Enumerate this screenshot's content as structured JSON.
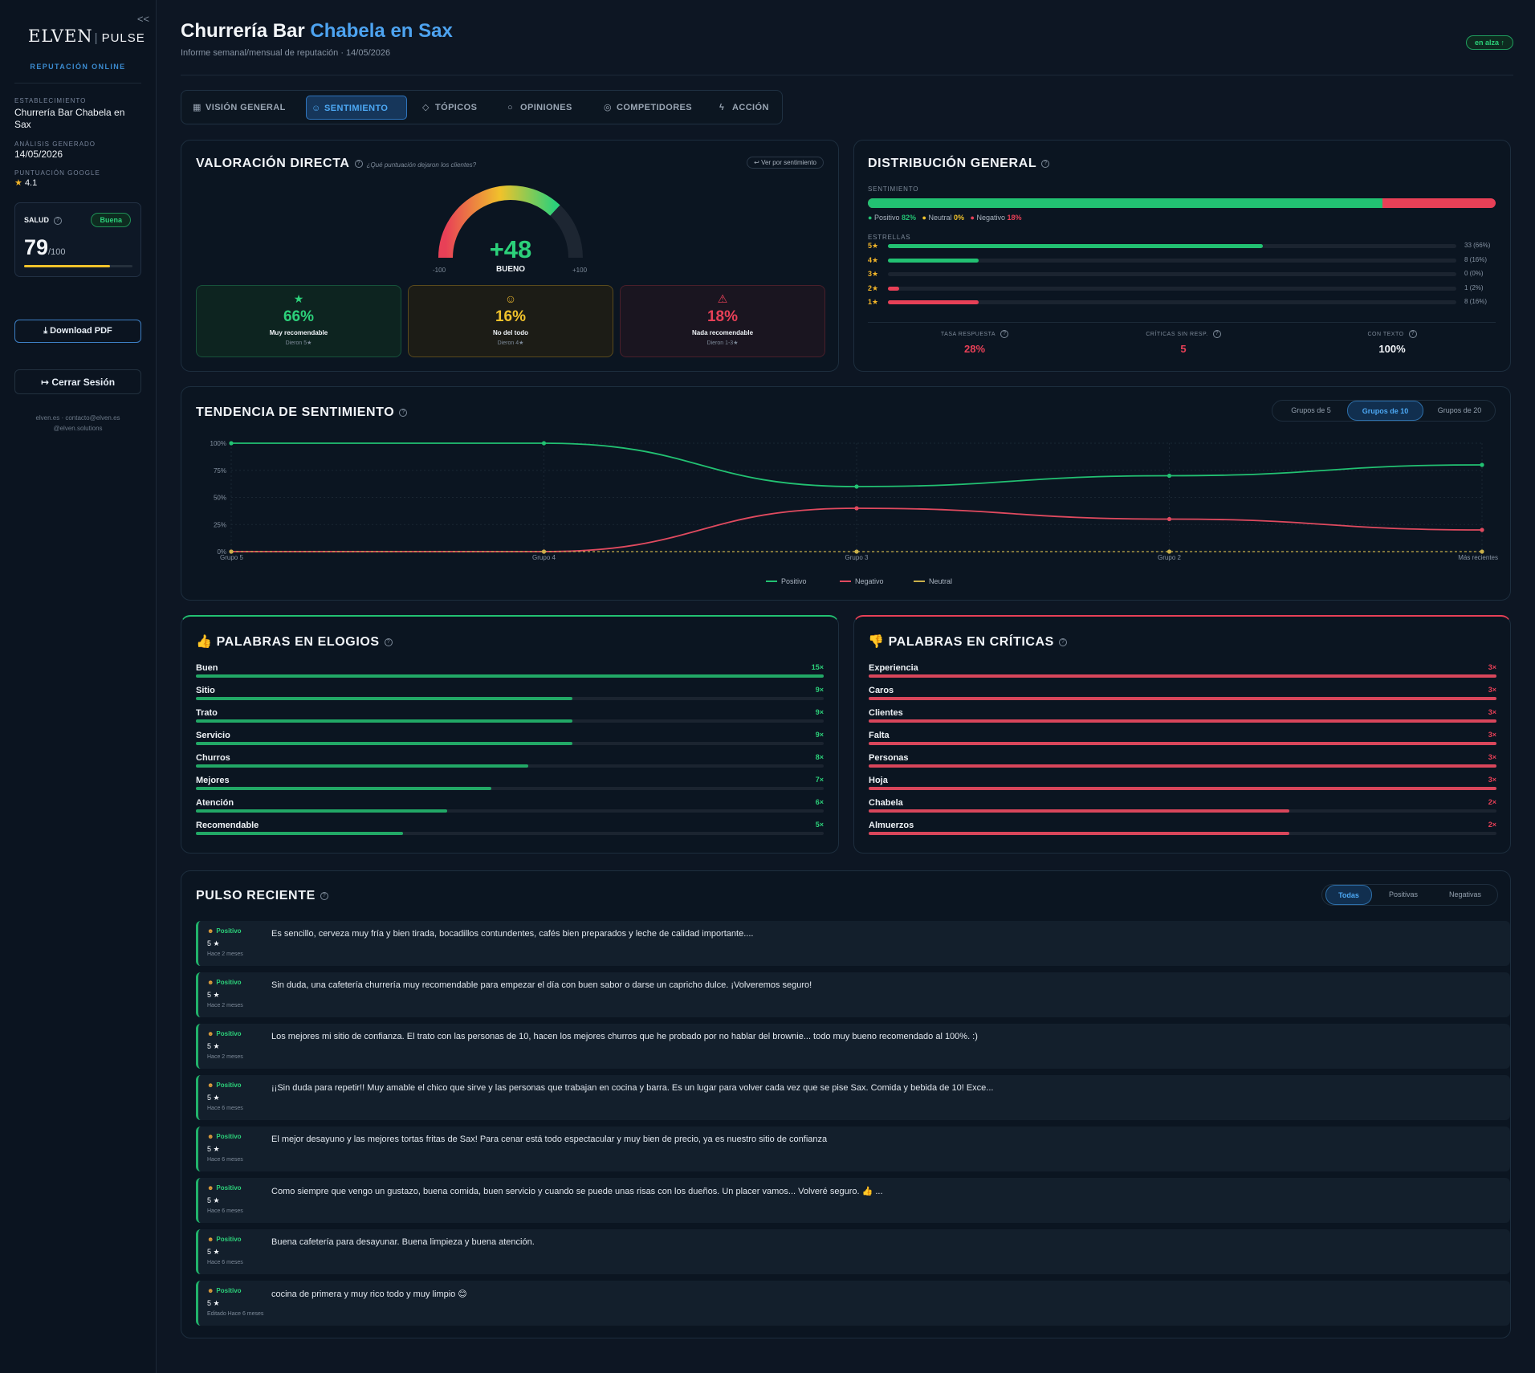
{
  "sidebar": {
    "collapse": "<<",
    "logo_main": "ELVEN",
    "logo_sub": "PULSE",
    "subtitle": "REPUTACIÓN ONLINE",
    "estab_label": "ESTABLECIMIENTO",
    "estab_value": "Churrería Bar Chabela en Sax",
    "analisis_label": "ANÁLISIS GENERADO",
    "analisis_value": "14/05/2026",
    "google_label": "PUNTUACIÓN GOOGLE",
    "google_value": "4.1",
    "health_label": "SALUD",
    "health_badge": "Buena",
    "health_score": "79",
    "health_max": "/100",
    "health_fraction": 0.79,
    "pdf_label": "Download PDF",
    "logout_label": "Cerrar Sesión",
    "footer1": "elven.es · contacto@elven.es",
    "footer2": "@elven.solutions"
  },
  "header": {
    "title_a": "Churrería Bar",
    "title_b": "Chabela en Sax",
    "subtitle": "Informe semanal/mensual de reputación · 14/05/2026",
    "badge": "en alza ↑"
  },
  "tabs": [
    {
      "label": "VISIÓN GENERAL",
      "icon": "grid-icon"
    },
    {
      "label": "SENTIMIENTO",
      "icon": "smile-icon"
    },
    {
      "label": "TÓPICOS",
      "icon": "tag-icon"
    },
    {
      "label": "OPINIONES",
      "icon": "chat-icon"
    },
    {
      "label": "COMPETIDORES",
      "icon": "target-icon"
    },
    {
      "label": "ACCIÓN",
      "icon": "bolt-icon"
    }
  ],
  "valoracion": {
    "title": "VALORACIÓN DIRECTA",
    "hint": "¿Qué puntuación dejaron los clientes?",
    "link": "↩ Ver por sentimiento",
    "score": "+48",
    "score_value": 48,
    "score_label": "BUENO",
    "min": "-100",
    "max": "+100",
    "boxes": [
      {
        "pct": "66%",
        "label": "Muy recomendable",
        "desc": "Dieron 5★"
      },
      {
        "pct": "16%",
        "label": "No del todo",
        "desc": "Dieron 4★"
      },
      {
        "pct": "18%",
        "label": "Nada recomendable",
        "desc": "Dieron 1-3★"
      }
    ]
  },
  "distribucion": {
    "title": "DISTRIBUCIÓN GENERAL",
    "sent_label": "SENTIMIENTO",
    "pos_frac": 0.82,
    "legend": [
      {
        "name": "Positivo",
        "val": "82%"
      },
      {
        "name": "Neutral",
        "val": "0%"
      },
      {
        "name": "Negativo",
        "val": "18%"
      }
    ],
    "stars_label": "ESTRELLAS",
    "stars": [
      {
        "label": "5★",
        "count": "33 (66%)",
        "frac": 0.66
      },
      {
        "label": "4★",
        "count": "8 (16%)",
        "frac": 0.16
      },
      {
        "label": "3★",
        "count": "0 (0%)",
        "frac": 0
      },
      {
        "label": "2★",
        "count": "1 (2%)",
        "frac": 0.02
      },
      {
        "label": "1★",
        "count": "8 (16%)",
        "frac": 0.16
      }
    ],
    "stats": [
      {
        "label": "TASA RESPUESTA",
        "value": "28%"
      },
      {
        "label": "CRÍTICAS SIN RESP.",
        "value": "5"
      },
      {
        "label": "CON TEXTO",
        "value": "100%"
      }
    ]
  },
  "tendencia": {
    "title": "TENDENCIA DE SENTIMIENTO",
    "segments": [
      "Grupos de 5",
      "Grupos de 10",
      "Grupos de 20"
    ],
    "active": 1
  },
  "chart_data": {
    "type": "line",
    "x": [
      "Grupo 5",
      "Grupo 4",
      "Grupo 3",
      "Grupo 2",
      "Más recientes"
    ],
    "yticks": [
      "100%",
      "75%",
      "50%",
      "25%",
      "0%"
    ],
    "ylim": [
      0,
      100
    ],
    "series": [
      {
        "name": "Positivo",
        "color": "#22c172",
        "values": [
          100,
          100,
          60,
          70,
          80
        ]
      },
      {
        "name": "Negativo",
        "color": "#e04a5f",
        "values": [
          0,
          0,
          40,
          30,
          20
        ]
      },
      {
        "name": "Neutral",
        "color": "#c9b04a",
        "values": [
          0,
          0,
          0,
          0,
          0
        ]
      }
    ]
  },
  "elogios": {
    "title": "PALABRAS EN ELOGIOS",
    "words": [
      {
        "w": "Buen",
        "c": "15×",
        "f": 1
      },
      {
        "w": "Sitio",
        "c": "9×",
        "f": 0.6
      },
      {
        "w": "Trato",
        "c": "9×",
        "f": 0.6
      },
      {
        "w": "Servicio",
        "c": "9×",
        "f": 0.6
      },
      {
        "w": "Churros",
        "c": "8×",
        "f": 0.53
      },
      {
        "w": "Mejores",
        "c": "7×",
        "f": 0.47
      },
      {
        "w": "Atención",
        "c": "6×",
        "f": 0.4
      },
      {
        "w": "Recomendable",
        "c": "5×",
        "f": 0.33
      }
    ]
  },
  "criticas": {
    "title": "PALABRAS EN CRÍTICAS",
    "words": [
      {
        "w": "Experiencia",
        "c": "3×",
        "f": 1
      },
      {
        "w": "Caros",
        "c": "3×",
        "f": 1
      },
      {
        "w": "Clientes",
        "c": "3×",
        "f": 1
      },
      {
        "w": "Falta",
        "c": "3×",
        "f": 1
      },
      {
        "w": "Personas",
        "c": "3×",
        "f": 1
      },
      {
        "w": "Hoja",
        "c": "3×",
        "f": 1
      },
      {
        "w": "Chabela",
        "c": "2×",
        "f": 0.67
      },
      {
        "w": "Almuerzos",
        "c": "2×",
        "f": 0.67
      }
    ]
  },
  "pulso": {
    "title": "PULSO RECIENTE",
    "filters": [
      "Todas",
      "Positivas",
      "Negativas"
    ],
    "reviews": [
      {
        "s": "Positivo",
        "stars": "5 ★",
        "time": "Hace 2 meses",
        "text": "Es sencillo, cerveza muy fría y bien tirada, bocadillos contundentes, cafés bien preparados y leche de calidad importante...."
      },
      {
        "s": "Positivo",
        "stars": "5 ★",
        "time": "Hace 2 meses",
        "text": "Sin duda, una cafetería churrería muy recomendable para empezar el día con buen sabor o darse un capricho dulce. ¡Volveremos seguro!"
      },
      {
        "s": "Positivo",
        "stars": "5 ★",
        "time": "Hace 2 meses",
        "text": "Los mejores mi sitio de confianza. El trato con las personas de 10, hacen los mejores churros que he probado por no hablar del brownie... todo muy bueno recomendado al 100%. :)"
      },
      {
        "s": "Positivo",
        "stars": "5 ★",
        "time": "Hace 6 meses",
        "text": "¡¡Sin duda para repetir!! Muy amable el chico que sirve y las personas que trabajan en cocina y barra. Es un lugar para volver cada vez que se pise Sax. Comida y bebida de 10! Exce..."
      },
      {
        "s": "Positivo",
        "stars": "5 ★",
        "time": "Hace 6 meses",
        "text": "El mejor desayuno y las mejores tortas fritas de Sax! Para cenar está todo espectacular y muy bien de precio, ya es nuestro sitio de confianza"
      },
      {
        "s": "Positivo",
        "stars": "5 ★",
        "time": "Hace 6 meses",
        "text": "Como siempre que vengo un gustazo, buena comida, buen servicio y cuando se puede unas risas con los dueños. Un placer vamos... Volveré seguro. 👍 ..."
      },
      {
        "s": "Positivo",
        "stars": "5 ★",
        "time": "Hace 6 meses",
        "text": "Buena cafetería para desayunar. Buena limpieza y buena atención."
      },
      {
        "s": "Positivo",
        "stars": "5 ★",
        "time": "Editado Hace 6 meses",
        "text": "cocina de primera y muy rico todo y muy limpio 😊"
      }
    ]
  }
}
